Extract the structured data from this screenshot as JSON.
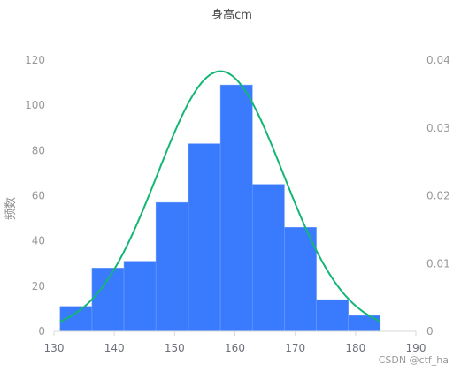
{
  "chart_data": {
    "type": "bar",
    "title": "身高cm",
    "ylabel": "频数",
    "x_ticks": [
      "130",
      "140",
      "150",
      "160",
      "170",
      "180",
      "190"
    ],
    "xlim": [
      130,
      190
    ],
    "ylim": [
      0,
      120
    ],
    "y_ticks": [
      "0",
      "20",
      "40",
      "60",
      "80",
      "100",
      "120"
    ],
    "y2lim": [
      0,
      0.04
    ],
    "y2_ticks": [
      "0",
      "0.01",
      "0.02",
      "0.03",
      "0.04"
    ],
    "bins": [
      {
        "x0": 131,
        "x1": 136.3,
        "value": 11
      },
      {
        "x0": 136.3,
        "x1": 141.6,
        "value": 28
      },
      {
        "x0": 141.6,
        "x1": 146.9,
        "value": 31
      },
      {
        "x0": 146.9,
        "x1": 152.3,
        "value": 57
      },
      {
        "x0": 152.3,
        "x1": 157.6,
        "value": 83
      },
      {
        "x0": 157.6,
        "x1": 162.9,
        "value": 109
      },
      {
        "x0": 162.9,
        "x1": 168.2,
        "value": 65
      },
      {
        "x0": 168.2,
        "x1": 173.5,
        "value": 46
      },
      {
        "x0": 173.5,
        "x1": 178.8,
        "value": 14
      },
      {
        "x0": 178.8,
        "x1": 184.1,
        "value": 7
      }
    ],
    "density_curve": {
      "mean": 157.6,
      "sd": 10.4,
      "x_range": [
        131,
        184.1
      ]
    },
    "colors": {
      "bar": "#3a7bfe",
      "bar_edge": "#6d9bff",
      "curve": "#13b675",
      "axis": "#d9d9d9"
    }
  },
  "watermark": "CSDN @ctf_ha"
}
